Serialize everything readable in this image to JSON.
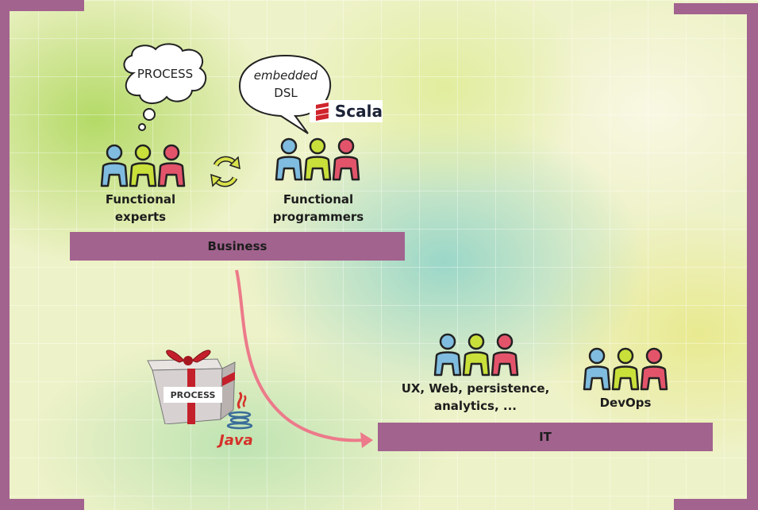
{
  "thought_bubble": {
    "text": "PROCESS"
  },
  "speech_bubble": {
    "line1": "embedded",
    "line2": "DSL"
  },
  "scala_logo": {
    "text": "Scala",
    "color": "#d0232b"
  },
  "groups": {
    "functional_experts": {
      "line1": "Functional",
      "line2": "experts"
    },
    "functional_programmers": {
      "line1": "Functional",
      "line2": "programmers"
    },
    "ux_web": {
      "line1": "UX, Web, persistence,",
      "line2": "analytics, ..."
    },
    "devops": {
      "label": "DevOps"
    }
  },
  "bars": {
    "business": "Business",
    "it": "IT"
  },
  "gift": {
    "label": "PROCESS"
  },
  "java_logo": {
    "text": "Java"
  },
  "colors": {
    "frame": "#a2638f",
    "person_blue": "#7fbcdf",
    "person_lime": "#c9e03a",
    "person_red": "#e3546b",
    "arrow": "#ec7a8a",
    "cycle": "#d8e24a"
  },
  "icons": [
    "thought-bubble",
    "speech-bubble",
    "people-group",
    "cycle-arrows-icon",
    "gift-box",
    "java-logo",
    "scala-logo",
    "curved-arrow"
  ]
}
